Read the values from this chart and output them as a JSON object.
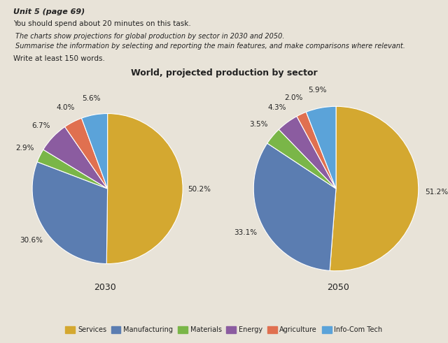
{
  "title": "World, projected production by sector",
  "chart2030": {
    "year": "2030",
    "labels": [
      "Services",
      "Manufacturing",
      "Materials",
      "Energy",
      "Agriculture",
      "Info-Com Tech"
    ],
    "values": [
      50.2,
      30.6,
      2.9,
      6.7,
      4.0,
      5.6
    ],
    "colors": [
      "#D4A830",
      "#5B7DB1",
      "#7AB648",
      "#8B5CA0",
      "#E07050",
      "#5BA3D9"
    ]
  },
  "chart2050": {
    "year": "2050",
    "labels": [
      "Services",
      "Manufacturing",
      "Materials",
      "Energy",
      "Agriculture",
      "Info-Com Tech"
    ],
    "values": [
      51.2,
      33.1,
      3.5,
      4.3,
      2.0,
      5.9
    ],
    "colors": [
      "#D4A830",
      "#5B7DB1",
      "#7AB648",
      "#8B5CA0",
      "#E07050",
      "#5BA3D9"
    ]
  },
  "legend_labels": [
    "Services",
    "Manufacturing",
    "Materials",
    "Energy",
    "Agriculture",
    "Info-Com Tech"
  ],
  "legend_colors": [
    "#D4A830",
    "#5B7DB1",
    "#7AB648",
    "#8B5CA0",
    "#E07050",
    "#5BA3D9"
  ],
  "bg_color": "#E8E3D8",
  "text_color": "#222222",
  "header_line1": "Unit 5 (page 69)",
  "header_line2": "You should spend about 20 minutes on this task.",
  "header_line3": "The charts show projections for global production by sector in 2030 and 2050.",
  "header_line4": "Summarise the information by selecting and reporting the main features, and make comparisons where relevant.",
  "header_line5": "Write at least 150 words."
}
